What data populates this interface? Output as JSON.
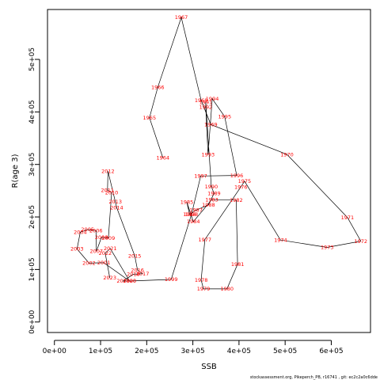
{
  "chart_data": {
    "type": "line",
    "xlabel": "SSB",
    "ylabel": "R(age 3)",
    "xlim": [
      -15000,
      685000
    ],
    "ylim": [
      -20000,
      595000
    ],
    "x_ticks": [
      0,
      100000,
      200000,
      300000,
      400000,
      500000,
      600000
    ],
    "x_tick_labels": [
      "0e+00",
      "1e+05",
      "2e+05",
      "3e+05",
      "4e+05",
      "5e+05",
      "6e+05"
    ],
    "y_ticks": [
      0,
      100000,
      200000,
      300000,
      400000,
      500000
    ],
    "y_tick_labels": [
      "0e+00",
      "1e+05",
      "2e+05",
      "3e+05",
      "4e+05",
      "5e+05"
    ],
    "grid": false,
    "legend": "none",
    "line_color": "#000000",
    "label_color": "#ff0000",
    "footer": "stockassessment.org, Pikeperch_PB, r16741 , git: ec2c2a0c6dde",
    "points": [
      {
        "label": "1964",
        "x": 235000,
        "y": 313000
      },
      {
        "label": "1965",
        "x": 206000,
        "y": 389000
      },
      {
        "label": "1966",
        "x": 224000,
        "y": 447000
      },
      {
        "label": "1967",
        "x": 275000,
        "y": 580000
      },
      {
        "label": "1968",
        "x": 318000,
        "y": 422000
      },
      {
        "label": "1969",
        "x": 339000,
        "y": 376000
      },
      {
        "label": "1970",
        "x": 504000,
        "y": 319000
      },
      {
        "label": "1971",
        "x": 635000,
        "y": 199000
      },
      {
        "label": "1972",
        "x": 664000,
        "y": 154000
      },
      {
        "label": "1973",
        "x": 591000,
        "y": 142000
      },
      {
        "label": "1974",
        "x": 490000,
        "y": 156000
      },
      {
        "label": "1975",
        "x": 412000,
        "y": 268000
      },
      {
        "label": "1976",
        "x": 404000,
        "y": 257000
      },
      {
        "label": "1977",
        "x": 326000,
        "y": 157000
      },
      {
        "label": "1978",
        "x": 318000,
        "y": 80000
      },
      {
        "label": "1979",
        "x": 323000,
        "y": 63000
      },
      {
        "label": "1980",
        "x": 374000,
        "y": 63000
      },
      {
        "label": "1981",
        "x": 397000,
        "y": 110000
      },
      {
        "label": "1982",
        "x": 394000,
        "y": 232000
      },
      {
        "label": "1983",
        "x": 341000,
        "y": 233000
      },
      {
        "label": "1984",
        "x": 301000,
        "y": 191000
      },
      {
        "label": "1985",
        "x": 287000,
        "y": 228000
      },
      {
        "label": "1986",
        "x": 293000,
        "y": 205000
      },
      {
        "label": "1987",
        "x": 307000,
        "y": 213000
      },
      {
        "label": "1988",
        "x": 334000,
        "y": 223000
      },
      {
        "label": "1989",
        "x": 346000,
        "y": 245000
      },
      {
        "label": "1990",
        "x": 340000,
        "y": 258000
      },
      {
        "label": "1991",
        "x": 328000,
        "y": 418000
      },
      {
        "label": "1992",
        "x": 328000,
        "y": 409000
      },
      {
        "label": "1993",
        "x": 333000,
        "y": 319000
      },
      {
        "label": "1994",
        "x": 342000,
        "y": 425000
      },
      {
        "label": "1995",
        "x": 369000,
        "y": 391000
      },
      {
        "label": "1996",
        "x": 395000,
        "y": 279000
      },
      {
        "label": "1997",
        "x": 317000,
        "y": 278000
      },
      {
        "label": "1998",
        "x": 297000,
        "y": 205000
      },
      {
        "label": "1999",
        "x": 253000,
        "y": 81000
      },
      {
        "label": "2000",
        "x": 163000,
        "y": 78000
      },
      {
        "label": "2001",
        "x": 107000,
        "y": 113000
      },
      {
        "label": "2002",
        "x": 75000,
        "y": 112000
      },
      {
        "label": "2003",
        "x": 49000,
        "y": 139000
      },
      {
        "label": "2004",
        "x": 56000,
        "y": 171000
      },
      {
        "label": "2005",
        "x": 72000,
        "y": 176000
      },
      {
        "label": "2006",
        "x": 90000,
        "y": 174000
      },
      {
        "label": "2007",
        "x": 91000,
        "y": 135000
      },
      {
        "label": "2008",
        "x": 102000,
        "y": 161000
      },
      {
        "label": "2009",
        "x": 117000,
        "y": 160000
      },
      {
        "label": "2010",
        "x": 124000,
        "y": 246000
      },
      {
        "label": "2011",
        "x": 115000,
        "y": 251000
      },
      {
        "label": "2012",
        "x": 116000,
        "y": 287000
      },
      {
        "label": "2013",
        "x": 132000,
        "y": 229000
      },
      {
        "label": "2014",
        "x": 135000,
        "y": 218000
      },
      {
        "label": "2015",
        "x": 174000,
        "y": 126000
      },
      {
        "label": "2016",
        "x": 180000,
        "y": 99000
      },
      {
        "label": "2017",
        "x": 191000,
        "y": 92000
      },
      {
        "label": "2018",
        "x": 171000,
        "y": 91000
      },
      {
        "label": "2019",
        "x": 149000,
        "y": 78000
      },
      {
        "label": "2020",
        "x": 163000,
        "y": 78000
      },
      {
        "label": "2021",
        "x": 121000,
        "y": 140000
      },
      {
        "label": "2022",
        "x": 110000,
        "y": 131000
      },
      {
        "label": "2023",
        "x": 120000,
        "y": 84000
      }
    ]
  }
}
